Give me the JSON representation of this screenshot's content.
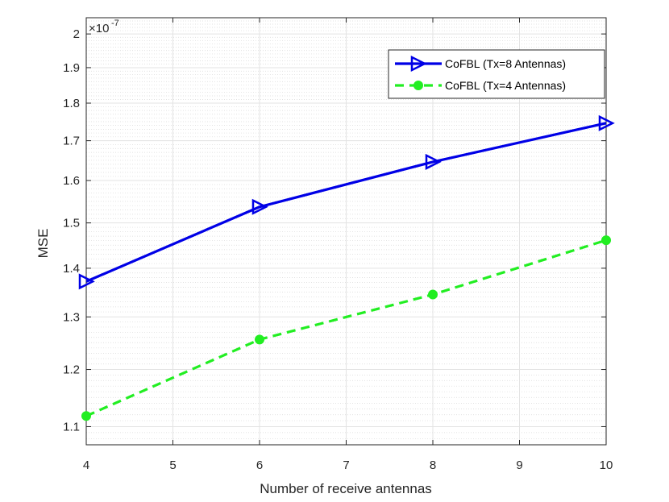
{
  "chart_data": {
    "type": "line",
    "xlabel": "Number of receive antennas",
    "ylabel": "MSE",
    "y_exponent_label": "×10",
    "y_exponent_power": "-7",
    "xlim": [
      4,
      10
    ],
    "ylim": [
      1.07,
      2.05
    ],
    "y_scale": "log",
    "grid": true,
    "minor_grid": true,
    "legend_position": "top-right",
    "x_ticks": [
      "4",
      "5",
      "6",
      "7",
      "8",
      "9",
      "10"
    ],
    "x_tick_values": [
      4,
      5,
      6,
      7,
      8,
      9,
      10
    ],
    "y_ticks": [
      "1.1",
      "1.2",
      "1.3",
      "1.4",
      "1.5",
      "1.6",
      "1.7",
      "1.8",
      "1.9",
      "2"
    ],
    "y_tick_values": [
      1.1,
      1.2,
      1.3,
      1.4,
      1.5,
      1.6,
      1.7,
      1.8,
      1.9,
      2.0
    ],
    "series": [
      {
        "name": "CoFBL (Tx=8 Antennas)",
        "color": "#0000e6",
        "line_style": "solid",
        "marker": "triangle-right",
        "x": [
          4,
          6,
          8,
          10
        ],
        "y": [
          1.372,
          1.537,
          1.646,
          1.746
        ]
      },
      {
        "name": "CoFBL (Tx=4 Antennas)",
        "color": "#22ee22",
        "line_style": "dashed",
        "marker": "circle",
        "x": [
          4,
          6,
          8,
          10
        ],
        "y": [
          1.118,
          1.256,
          1.345,
          1.461
        ]
      }
    ]
  }
}
